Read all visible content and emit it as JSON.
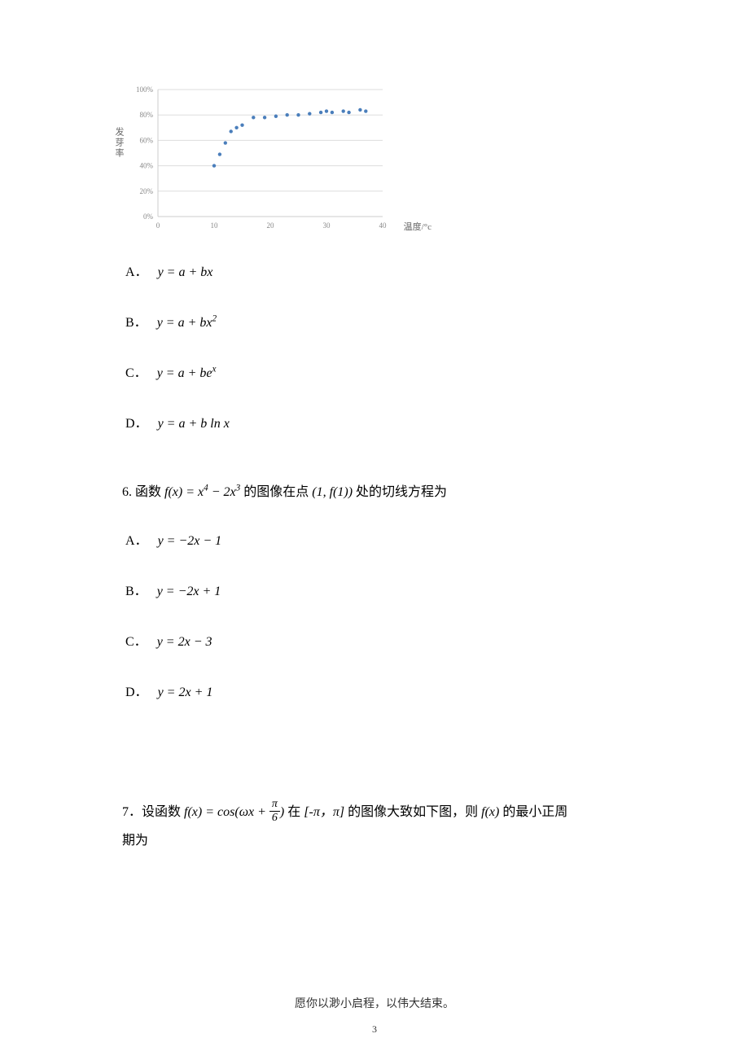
{
  "chart": {
    "type": "scatter",
    "ylabel": "发芽率",
    "xlabel": "温度/°c",
    "xlim": [
      0,
      40
    ],
    "ylim": [
      0,
      100
    ],
    "xtick_step": 10,
    "ytick_step": 20,
    "ytick_suffix": "%",
    "tick_fontsize": 9,
    "tick_color": "#888888",
    "grid_color": "#dddddd",
    "axis_color": "#cccccc",
    "background_color": "#ffffff",
    "marker_color": "#4a7ebb",
    "marker_radius": 2.2,
    "points": [
      [
        10,
        40
      ],
      [
        11,
        49
      ],
      [
        12,
        58
      ],
      [
        13,
        67
      ],
      [
        14,
        70
      ],
      [
        15,
        72
      ],
      [
        17,
        78
      ],
      [
        19,
        78
      ],
      [
        21,
        79
      ],
      [
        23,
        80
      ],
      [
        25,
        80
      ],
      [
        27,
        81
      ],
      [
        29,
        82
      ],
      [
        30,
        83
      ],
      [
        31,
        82
      ],
      [
        33,
        83
      ],
      [
        34,
        82
      ],
      [
        36,
        84
      ],
      [
        37,
        83
      ]
    ]
  },
  "q5_options": {
    "A": "y = a + bx",
    "B": "y = a + bx²",
    "C": "y = a + beˣ",
    "D": "y = a + b ln x"
  },
  "q6": {
    "stem_pre": "6. 函数",
    "stem_fx": "f(x) = x⁴ − 2x³",
    "stem_mid": "的图像在点",
    "stem_pt": "(1, f(1))",
    "stem_post": "处的切线方程为",
    "options": {
      "A": "y = −2x − 1",
      "B": "y = −2x + 1",
      "C": "y = 2x − 3",
      "D": "y = 2x + 1"
    }
  },
  "q7": {
    "pre": "7．设函数",
    "fx_open": "f(x) = cos(ωx +",
    "frac_n": "π",
    "frac_d": "6",
    "fx_close": ")",
    "mid1": "在",
    "interval": "[-π，π]",
    "mid2": "的图像大致如下图，则",
    "fx2": "f(x)",
    "post": "的最小正周",
    "line2": "期为"
  },
  "footer": "愿你以渺小启程，以伟大结束。",
  "page_number": "3"
}
